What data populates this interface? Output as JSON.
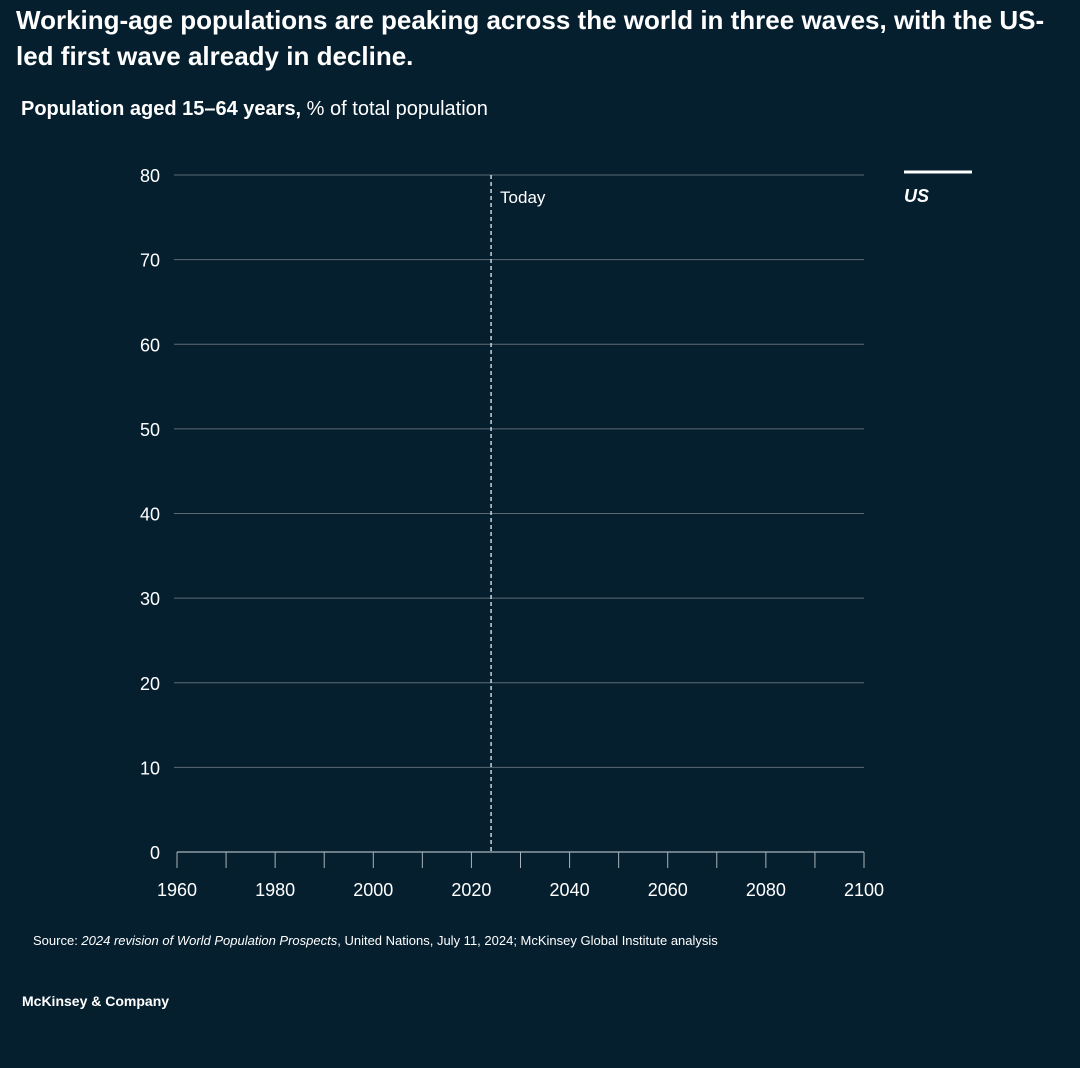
{
  "title": "Working-age populations are peaking across the world in three waves, with the US-led first wave already in decline.",
  "subtitle": {
    "bold": "Population aged 15–64 years,",
    "normal": " % of total population"
  },
  "source": {
    "prefix": "Source: ",
    "italic": "2024 revision of World Population Prospects",
    "rest": ", United Nations, July 11, 2024; McKinsey Global Institute analysis"
  },
  "brand": "McKinsey & Company",
  "chart_data": {
    "type": "line",
    "title": "",
    "xlabel": "",
    "ylabel": "",
    "xlim": [
      1960,
      2100
    ],
    "ylim": [
      0,
      80
    ],
    "x_ticks": [
      1960,
      1980,
      2000,
      2020,
      2040,
      2060,
      2080,
      2100
    ],
    "x_minor_ticks_step": 10,
    "y_ticks": [
      0,
      10,
      20,
      30,
      40,
      50,
      60,
      70,
      80
    ],
    "grid": "horizontal",
    "legend_placement": "right",
    "annotations": [
      {
        "label": "Today",
        "x": 2024,
        "style": "dashed-vertical"
      }
    ],
    "series": [
      {
        "name": "US",
        "color": "#ffffff",
        "values": []
      }
    ],
    "colors": {
      "background": "#061f2f",
      "grid": "#5a6b76",
      "axis": "#a9b3ba",
      "text": "#ffffff"
    }
  }
}
